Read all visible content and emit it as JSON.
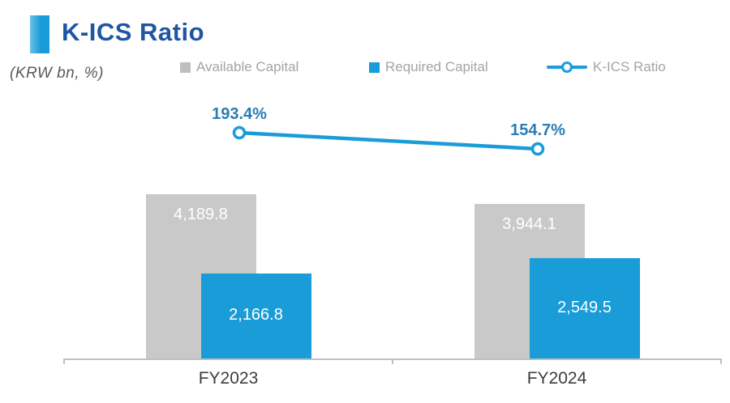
{
  "header": {
    "title": "K-ICS Ratio",
    "unit_note": "(KRW bn, %)"
  },
  "legend": [
    {
      "label": "Available Capital",
      "marker": "square",
      "color": "#c8c8c8"
    },
    {
      "label": "Required Capital",
      "marker": "square",
      "color": "#1a9cd8"
    },
    {
      "label": "K-ICS Ratio",
      "marker": "line-circle",
      "color": "#1a9cd8"
    }
  ],
  "colors": {
    "accent_blue": "#1a9cd8",
    "bar_gray": "#c9c9c9",
    "bar_blue": "#1a9cd8",
    "title_navy": "#1e56a4",
    "pct_label_blue": "#2a7db5",
    "axis_gray": "#c0c0c0",
    "legend_text_gray": "#a4a4a4"
  },
  "chart_data": {
    "type": "bar+line",
    "categories": [
      "FY2023",
      "FY2024"
    ],
    "series": [
      {
        "name": "Available Capital",
        "type": "bar",
        "color": "#c9c9c9",
        "values": [
          4189.8,
          3944.1
        ],
        "value_labels": [
          "4,189.8",
          "3,944.1"
        ],
        "label_position": "inside-top"
      },
      {
        "name": "Required Capital",
        "type": "bar",
        "color": "#1a9cd8",
        "values": [
          2166.8,
          2549.5
        ],
        "value_labels": [
          "2,166.8",
          "2,549.5"
        ],
        "label_position": "inside-center"
      },
      {
        "name": "K-ICS Ratio",
        "type": "line",
        "color": "#1a9cd8",
        "values": [
          193.4,
          154.7
        ],
        "value_labels": [
          "193.4%",
          "154.7%"
        ],
        "label_position": "above"
      }
    ],
    "title": "K-ICS Ratio",
    "xlabel": "",
    "ylabel": "KRW bn / %",
    "grid": false,
    "legend_position": "top"
  }
}
